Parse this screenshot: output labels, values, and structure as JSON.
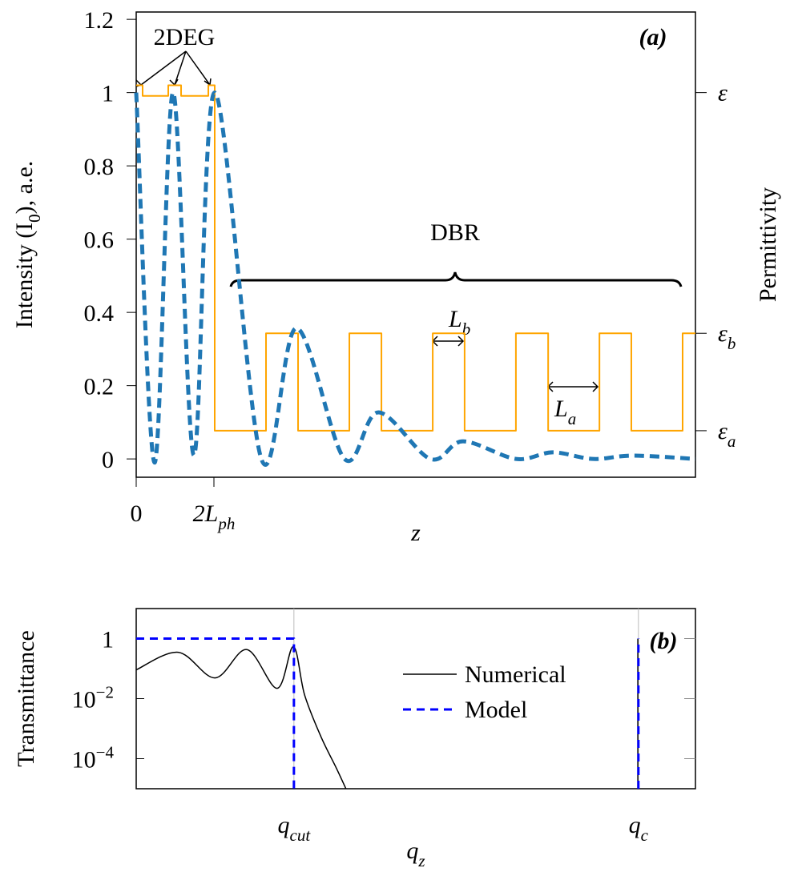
{
  "chart_data": [
    {
      "type": "line",
      "label": "(a)",
      "xlabel": "z",
      "ylabel": "Intensity (I_{0}), a.e.",
      "y2label": "Permittivity",
      "xlim": [
        0,
        14.39
      ],
      "xticks": [
        0,
        {
          "value": 2,
          "label": "2L_{ph}"
        }
      ],
      "ylim": [
        -0.05,
        1.22
      ],
      "yticks": [
        0,
        0.2,
        0.4,
        0.6,
        0.8,
        1,
        1.2
      ],
      "y2lim": [
        -0.05,
        1.22
      ],
      "y2ticks": [
        {
          "value": 1,
          "label": "ε"
        },
        {
          "value": 0.343,
          "label": "ε_{b}"
        },
        {
          "value": 0.077,
          "label": "ε_{a}"
        }
      ],
      "grid": false,
      "series": [
        {
          "color": "#ffa500",
          "axis": "y2",
          "x": [
            0,
            0.165,
            0.165,
            0.825,
            0.825,
            1.155,
            1.155,
            1.856,
            1.856,
            2.02,
            2.02,
            3.34,
            3.34,
            4.165,
            4.165,
            5.485,
            5.485,
            6.31,
            6.31,
            7.63,
            7.63,
            8.45,
            8.45,
            9.77,
            9.77,
            10.6,
            10.6,
            11.92,
            11.92,
            12.74,
            12.74,
            14.06,
            14.06,
            14.39
          ],
          "values": [
            1.02,
            1.02,
            0.991,
            0.991,
            1.02,
            1.02,
            0.991,
            0.991,
            1.02,
            1.02,
            0.077,
            0.077,
            0.343,
            0.343,
            0.077,
            0.077,
            0.343,
            0.343,
            0.077,
            0.077,
            0.343,
            0.343,
            0.077,
            0.077,
            0.343,
            0.343,
            0.077,
            0.077,
            0.343,
            0.343,
            0.077,
            0.077,
            0.343,
            0.343
          ]
        },
        {
          "color": "#1f77b4",
          "dash": true,
          "interpolation": "smooth",
          "x": [
            0,
            0.474,
            0.948,
            1.485,
            2.02,
            3.22,
            4.12,
            5.36,
            6.23,
            7.57,
            8.41,
            9.77,
            10.72,
            11.75,
            12.78,
            14.39
          ],
          "values": [
            1,
            -0.01,
            1,
            0.01,
            1,
            0,
            0.357,
            0,
            0.127,
            0,
            0.048,
            0,
            0.018,
            0,
            0.009,
            0
          ]
        }
      ],
      "annotations": [
        "2DEG",
        "DBR",
        "L_{b}",
        "L_{a}"
      ]
    },
    {
      "type": "line",
      "label": "(b)",
      "xlabel": "q_{z}",
      "ylabel": "Transmittance",
      "yscale": "log",
      "xlim": [
        0,
        1
      ],
      "xticks": [
        {
          "value": 0.282,
          "label": "q_{cut}"
        },
        {
          "value": 0.898,
          "label": "q_{c}"
        }
      ],
      "ylim": [
        1e-05,
        10
      ],
      "yticks": [
        1,
        {
          "value": 0.01,
          "label": "10^{−2}"
        },
        {
          "value": 0.0001,
          "label": "10^{−4}"
        }
      ],
      "grid": "x",
      "legend": "center",
      "series": [
        {
          "name": "Numerical",
          "color": "#000000",
          "interpolation": "smooth",
          "x": [
            0,
            0.075,
            0.141,
            0.198,
            0.252,
            0.281,
            0.301,
            0.33,
            0.358,
            0.375,
            null,
            0.897,
            0.897
          ],
          "values": [
            0.091,
            0.35,
            0.049,
            0.43,
            0.022,
            0.54,
            0.0135,
            0.00056,
            4.8e-05,
            1e-05,
            null,
            1e-05,
            1
          ]
        },
        {
          "name": "Model",
          "color": "#0000ff",
          "dash": true,
          "x": [
            0,
            0.282,
            0.282,
            null,
            0.898,
            0.898
          ],
          "values": [
            1,
            1,
            1e-05,
            null,
            1e-05,
            1
          ]
        }
      ]
    }
  ]
}
